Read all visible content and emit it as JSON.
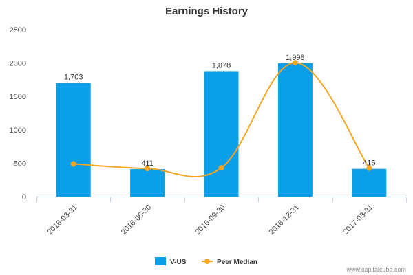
{
  "chart_data": {
    "type": "bar",
    "title": "Earnings History",
    "categories": [
      "2016-03-31",
      "2016-06-30",
      "2016-09-30",
      "2016-12-31",
      "2017-03-31"
    ],
    "ylim": [
      0,
      2500
    ],
    "yticks": [
      0,
      500,
      1000,
      1500,
      2000,
      2500
    ],
    "series": [
      {
        "name": "V-US",
        "kind": "bar",
        "color": "#0a9fe8",
        "values": [
          1703,
          411,
          1878,
          1998,
          415
        ],
        "data_labels": [
          "1,703",
          "411",
          "1,878",
          "1,998",
          "415"
        ]
      },
      {
        "name": "Peer Median",
        "kind": "line",
        "color": "#f5a623",
        "values": [
          490,
          420,
          430,
          2005,
          425
        ]
      }
    ],
    "legend_position": "bottom-center",
    "grid": false
  },
  "footer": {
    "credit": "www.capitalcube.com"
  }
}
